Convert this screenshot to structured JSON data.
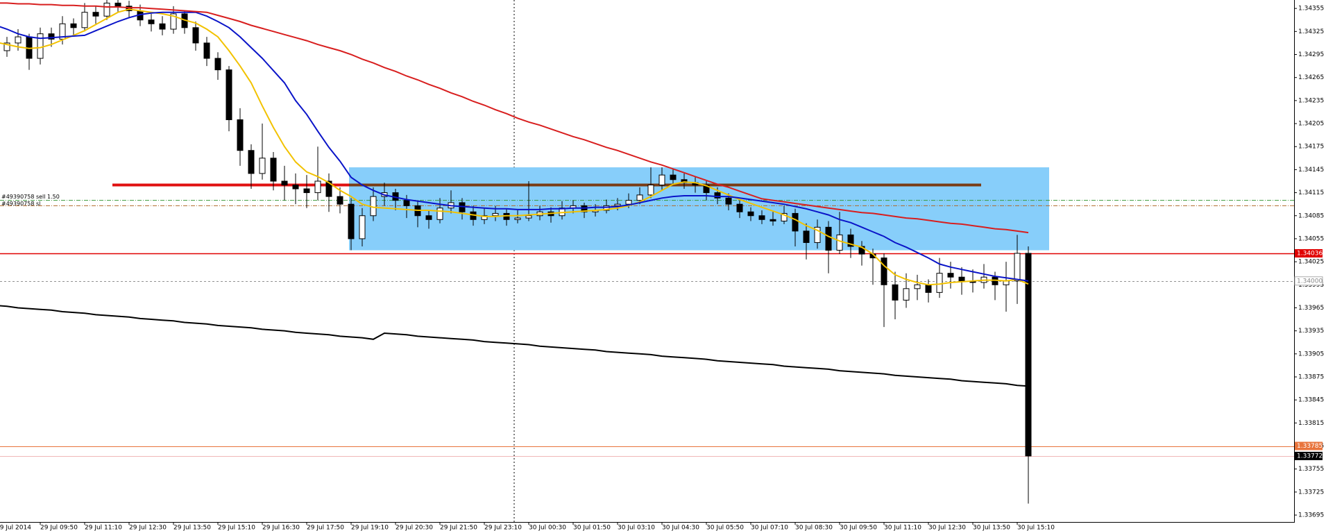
{
  "chart_data": {
    "type": "candlestick",
    "categories": [
      "29 Jul 2014",
      null,
      null,
      null,
      "29 Jul 09:50",
      null,
      null,
      null,
      "29 Jul 11:10",
      null,
      null,
      null,
      "29 Jul 12:30",
      null,
      null,
      null,
      "29 Jul 13:50",
      null,
      null,
      null,
      "29 Jul 15:10",
      null,
      null,
      null,
      "29 Jul 16:30",
      null,
      null,
      null,
      "29 Jul 17:50",
      null,
      null,
      null,
      "29 Jul 19:10",
      null,
      null,
      null,
      "29 Jul 20:30",
      null,
      null,
      null,
      "29 Jul 21:50",
      null,
      null,
      null,
      "29 Jul 23:10",
      null,
      null,
      null,
      "30 Jul 00:30",
      null,
      null,
      null,
      "30 Jul 01:50",
      null,
      null,
      null,
      "30 Jul 03:10",
      null,
      null,
      null,
      "30 Jul 04:30",
      null,
      null,
      null,
      "30 Jul 05:50",
      null,
      null,
      null,
      "30 Jul 07:10",
      null,
      null,
      null,
      "30 Jul 08:30",
      null,
      null,
      null,
      "30 Jul 09:50",
      null,
      null,
      null,
      "30 Jul 11:10",
      null,
      null,
      null,
      "30 Jul 12:30",
      null,
      null,
      null,
      "30 Jul 13:50",
      null,
      null,
      null,
      "30 Jul 15:10",
      null
    ],
    "ohlc": [
      [
        1.34295,
        1.34312,
        1.34285,
        1.343
      ],
      [
        1.343,
        1.34318,
        1.34292,
        1.3431
      ],
      [
        1.3431,
        1.34328,
        1.343,
        1.34318
      ],
      [
        1.34318,
        1.34322,
        1.34275,
        1.3429
      ],
      [
        1.3429,
        1.3433,
        1.34282,
        1.34322
      ],
      [
        1.34322,
        1.3433,
        1.34305,
        1.34315
      ],
      [
        1.34315,
        1.34345,
        1.34308,
        1.34335
      ],
      [
        1.34335,
        1.34342,
        1.3432,
        1.3433
      ],
      [
        1.3433,
        1.34362,
        1.34325,
        1.3435
      ],
      [
        1.3435,
        1.34358,
        1.34335,
        1.34345
      ],
      [
        1.34345,
        1.34372,
        1.3434,
        1.34362
      ],
      [
        1.34362,
        1.3437,
        1.3435,
        1.34358
      ],
      [
        1.34358,
        1.34365,
        1.34342,
        1.34352
      ],
      [
        1.34352,
        1.3436,
        1.34332,
        1.3434
      ],
      [
        1.3434,
        1.34348,
        1.34325,
        1.34335
      ],
      [
        1.34335,
        1.34345,
        1.3432,
        1.34328
      ],
      [
        1.34328,
        1.34358,
        1.34322,
        1.34348
      ],
      [
        1.34348,
        1.34352,
        1.34322,
        1.3433
      ],
      [
        1.3433,
        1.34338,
        1.343,
        1.3431
      ],
      [
        1.3431,
        1.34318,
        1.3428,
        1.3429
      ],
      [
        1.3429,
        1.34298,
        1.34262,
        1.34275
      ],
      [
        1.34275,
        1.3428,
        1.34195,
        1.3421
      ],
      [
        1.3421,
        1.34225,
        1.3415,
        1.3417
      ],
      [
        1.3417,
        1.34178,
        1.3412,
        1.3414
      ],
      [
        1.3414,
        1.34205,
        1.34132,
        1.3416
      ],
      [
        1.3416,
        1.34168,
        1.34118,
        1.3413
      ],
      [
        1.3413,
        1.3415,
        1.34105,
        1.34125
      ],
      [
        1.34125,
        1.3414,
        1.341,
        1.3412
      ],
      [
        1.3412,
        1.34138,
        1.34095,
        1.34115
      ],
      [
        1.34115,
        1.34175,
        1.34105,
        1.3413
      ],
      [
        1.3413,
        1.3414,
        1.3409,
        1.3411
      ],
      [
        1.3411,
        1.34122,
        1.34088,
        1.341
      ],
      [
        1.341,
        1.34108,
        1.3404,
        1.34055
      ],
      [
        1.34055,
        1.34095,
        1.34045,
        1.34085
      ],
      [
        1.34085,
        1.34122,
        1.34078,
        1.3411
      ],
      [
        1.3411,
        1.34128,
        1.34098,
        1.34115
      ],
      [
        1.34115,
        1.3412,
        1.34092,
        1.34105
      ],
      [
        1.34105,
        1.34112,
        1.34082,
        1.34098
      ],
      [
        1.34098,
        1.34105,
        1.3407,
        1.34085
      ],
      [
        1.34085,
        1.34092,
        1.34068,
        1.3408
      ],
      [
        1.3408,
        1.34108,
        1.34075,
        1.34095
      ],
      [
        1.34095,
        1.34118,
        1.34088,
        1.34102
      ],
      [
        1.34102,
        1.34108,
        1.3408,
        1.3409
      ],
      [
        1.3409,
        1.34098,
        1.34072,
        1.3408
      ],
      [
        1.3408,
        1.34095,
        1.34074,
        1.34085
      ],
      [
        1.34085,
        1.34098,
        1.34078,
        1.34088
      ],
      [
        1.34088,
        1.34094,
        1.34072,
        1.3408
      ],
      [
        1.3408,
        1.34092,
        1.34075,
        1.34082
      ],
      [
        1.34082,
        1.3413,
        1.34078,
        1.34085
      ],
      [
        1.34085,
        1.34098,
        1.34079,
        1.3409
      ],
      [
        1.3409,
        1.34096,
        1.34076,
        1.34085
      ],
      [
        1.34085,
        1.34104,
        1.3408,
        1.34095
      ],
      [
        1.34095,
        1.34105,
        1.34088,
        1.34098
      ],
      [
        1.34098,
        1.34102,
        1.34082,
        1.3409
      ],
      [
        1.3409,
        1.341,
        1.34084,
        1.34092
      ],
      [
        1.34092,
        1.34106,
        1.34088,
        1.34098
      ],
      [
        1.34098,
        1.34108,
        1.34092,
        1.341
      ],
      [
        1.341,
        1.34114,
        1.34095,
        1.34105
      ],
      [
        1.34105,
        1.34122,
        1.341,
        1.34112
      ],
      [
        1.34112,
        1.34148,
        1.34108,
        1.34125
      ],
      [
        1.34125,
        1.34148,
        1.34118,
        1.34138
      ],
      [
        1.34138,
        1.34146,
        1.34125,
        1.34132
      ],
      [
        1.34132,
        1.3414,
        1.3412,
        1.34128
      ],
      [
        1.34128,
        1.34135,
        1.34115,
        1.34125
      ],
      [
        1.34125,
        1.3413,
        1.34105,
        1.34115
      ],
      [
        1.34115,
        1.34122,
        1.341,
        1.34108
      ],
      [
        1.34108,
        1.34114,
        1.34092,
        1.341
      ],
      [
        1.341,
        1.34106,
        1.34082,
        1.3409
      ],
      [
        1.3409,
        1.34096,
        1.34078,
        1.34085
      ],
      [
        1.34085,
        1.34092,
        1.34074,
        1.3408
      ],
      [
        1.3408,
        1.3409,
        1.34072,
        1.34078
      ],
      [
        1.34078,
        1.34098,
        1.34074,
        1.34088
      ],
      [
        1.34088,
        1.34094,
        1.34045,
        1.34065
      ],
      [
        1.34065,
        1.34075,
        1.34028,
        1.3405
      ],
      [
        1.3405,
        1.3408,
        1.34042,
        1.3407
      ],
      [
        1.3407,
        1.34078,
        1.3401,
        1.3404
      ],
      [
        1.3404,
        1.3409,
        1.34035,
        1.3406
      ],
      [
        1.3406,
        1.34068,
        1.3403,
        1.34045
      ],
      [
        1.34045,
        1.34052,
        1.3402,
        1.34035
      ],
      [
        1.34035,
        1.34042,
        1.33995,
        1.3403
      ],
      [
        1.3403,
        1.34036,
        1.3394,
        1.33995
      ],
      [
        1.33995,
        1.34012,
        1.3395,
        1.33975
      ],
      [
        1.33975,
        1.3401,
        1.33965,
        1.3399
      ],
      [
        1.3399,
        1.34008,
        1.33975,
        1.33995
      ],
      [
        1.33995,
        1.34002,
        1.33972,
        1.33985
      ],
      [
        1.33985,
        1.3403,
        1.33978,
        1.3401
      ],
      [
        1.3401,
        1.34025,
        1.3399,
        1.34005
      ],
      [
        1.34005,
        1.34018,
        1.33982,
        1.34
      ],
      [
        1.34,
        1.34015,
        1.33985,
        1.33998
      ],
      [
        1.33998,
        1.34022,
        1.3399,
        1.34005
      ],
      [
        1.34005,
        1.34012,
        1.33975,
        1.33995
      ],
      [
        1.33995,
        1.34025,
        1.3396,
        1.34
      ],
      [
        1.34,
        1.3406,
        1.3397,
        1.34036
      ],
      [
        1.34036,
        1.34045,
        1.3371,
        1.33772
      ]
    ],
    "lines": [
      {
        "color": "#f2c200",
        "values": [
          1.34311,
          1.34308,
          1.34305,
          1.34303,
          1.34304,
          1.34308,
          1.34314,
          1.3432,
          1.34326,
          1.34334,
          1.34342,
          1.3435,
          1.34354,
          1.34352,
          1.3435,
          1.34348,
          1.34345,
          1.3434,
          1.34336,
          1.34328,
          1.34318,
          1.343,
          1.3428,
          1.34258,
          1.34228,
          1.342,
          1.34175,
          1.34155,
          1.34142,
          1.34136,
          1.34128,
          1.34118,
          1.3411,
          1.341,
          1.34096,
          1.34095,
          1.34094,
          1.34093,
          1.34092,
          1.34092,
          1.34091,
          1.3409,
          1.34088,
          1.34086,
          1.34084,
          1.34084,
          1.34085,
          1.34085,
          1.34086,
          1.34087,
          1.34088,
          1.34089,
          1.3409,
          1.34091,
          1.34092,
          1.34093,
          1.34095,
          1.34098,
          1.34103,
          1.3411,
          1.34118,
          1.34126,
          1.34129,
          1.34128,
          1.34124,
          1.34118,
          1.34112,
          1.34106,
          1.34101,
          1.34096,
          1.34091,
          1.34086,
          1.3408,
          1.34072,
          1.34066,
          1.34058,
          1.34052,
          1.34048,
          1.34044,
          1.34035,
          1.3402,
          1.34008,
          1.34002,
          1.33998,
          1.33995,
          1.33996,
          1.33998,
          1.33999,
          1.34,
          1.34001,
          1.34001,
          1.34,
          1.34002,
          1.33996
        ]
      },
      {
        "color": "#0a14c8",
        "values": [
          1.34333,
          1.34328,
          1.34322,
          1.34318,
          1.34316,
          1.34317,
          1.34318,
          1.34319,
          1.3432,
          1.34326,
          1.34332,
          1.34338,
          1.34343,
          1.34347,
          1.34349,
          1.3435,
          1.3435,
          1.3435,
          1.3435,
          1.34345,
          1.34338,
          1.3433,
          1.34318,
          1.34304,
          1.3429,
          1.34274,
          1.34258,
          1.34235,
          1.34217,
          1.34195,
          1.34174,
          1.34156,
          1.34135,
          1.34125,
          1.34118,
          1.34112,
          1.34109,
          1.34106,
          1.34104,
          1.34102,
          1.341,
          1.34098,
          1.34097,
          1.34096,
          1.34095,
          1.34094,
          1.34094,
          1.34093,
          1.34093,
          1.34093,
          1.34094,
          1.34094,
          1.34095,
          1.34095,
          1.34096,
          1.34096,
          1.34097,
          1.34099,
          1.34102,
          1.34105,
          1.34108,
          1.3411,
          1.34111,
          1.34111,
          1.34111,
          1.3411,
          1.3411,
          1.34108,
          1.34106,
          1.34104,
          1.34102,
          1.341,
          1.34097,
          1.34094,
          1.3409,
          1.34086,
          1.3408,
          1.34076,
          1.3407,
          1.34064,
          1.34058,
          1.3405,
          1.34044,
          1.34037,
          1.3403,
          1.34022,
          1.34018,
          1.34015,
          1.34012,
          1.34009,
          1.34006,
          1.34004,
          1.34002,
          1.34
        ]
      },
      {
        "color": "#d81e1e",
        "values": [
          1.34362,
          1.34362,
          1.34361,
          1.34361,
          1.3436,
          1.3436,
          1.34359,
          1.34359,
          1.34358,
          1.34358,
          1.34357,
          1.34357,
          1.34356,
          1.34356,
          1.34355,
          1.34354,
          1.34353,
          1.34352,
          1.34351,
          1.3435,
          1.34346,
          1.34342,
          1.34338,
          1.34333,
          1.34329,
          1.34325,
          1.34321,
          1.34317,
          1.34313,
          1.34308,
          1.34304,
          1.343,
          1.34295,
          1.34289,
          1.34284,
          1.34278,
          1.34273,
          1.34267,
          1.34262,
          1.34256,
          1.34251,
          1.34245,
          1.3424,
          1.34234,
          1.34229,
          1.34223,
          1.34218,
          1.34212,
          1.34207,
          1.34203,
          1.34198,
          1.34193,
          1.34188,
          1.34184,
          1.34179,
          1.34174,
          1.3417,
          1.34165,
          1.3416,
          1.34155,
          1.34151,
          1.34146,
          1.34141,
          1.34136,
          1.34131,
          1.34126,
          1.34122,
          1.34117,
          1.34112,
          1.34107,
          1.34105,
          1.34103,
          1.34101,
          1.34099,
          1.34097,
          1.34095,
          1.34093,
          1.34091,
          1.34089,
          1.34088,
          1.34086,
          1.34084,
          1.34082,
          1.34081,
          1.34079,
          1.34077,
          1.34075,
          1.34074,
          1.34072,
          1.3407,
          1.34068,
          1.34067,
          1.34065,
          1.34063
        ]
      },
      {
        "color": "#000000",
        "values": [
          1.33968,
          1.33967,
          1.33965,
          1.33964,
          1.33963,
          1.33962,
          1.3396,
          1.33959,
          1.33958,
          1.33956,
          1.33955,
          1.33954,
          1.33953,
          1.33951,
          1.3395,
          1.33949,
          1.33948,
          1.33946,
          1.33945,
          1.33944,
          1.33942,
          1.33941,
          1.3394,
          1.33939,
          1.33937,
          1.33936,
          1.33935,
          1.33933,
          1.33932,
          1.33931,
          1.3393,
          1.33928,
          1.33927,
          1.33926,
          1.33924,
          1.33932,
          1.33931,
          1.3393,
          1.33928,
          1.33927,
          1.33926,
          1.33925,
          1.33924,
          1.33923,
          1.33921,
          1.3392,
          1.33919,
          1.33918,
          1.33917,
          1.33915,
          1.33914,
          1.33913,
          1.33912,
          1.33911,
          1.3391,
          1.33908,
          1.33907,
          1.33906,
          1.33905,
          1.33904,
          1.33902,
          1.33901,
          1.339,
          1.33899,
          1.33898,
          1.33896,
          1.33895,
          1.33894,
          1.33893,
          1.33892,
          1.33891,
          1.33889,
          1.33888,
          1.33887,
          1.33886,
          1.33885,
          1.33883,
          1.33882,
          1.33881,
          1.3388,
          1.33879,
          1.33877,
          1.33876,
          1.33875,
          1.33874,
          1.33873,
          1.33872,
          1.3387,
          1.33869,
          1.33868,
          1.33867,
          1.33866,
          1.33864,
          1.33863
        ]
      }
    ],
    "zone": [
      1.3404,
      1.34148
    ],
    "zone_color": "#87cefa",
    "support": [
      {
        "price": 1.34125,
        "color": "#e01010"
      },
      {
        "price": 1.34125,
        "color": "#7a3c14"
      }
    ],
    "levels": [
      {
        "price": 1.34036,
        "color": "#e00000",
        "style": "solid"
      },
      {
        "price": {
          "value": 1.34,
          "label": "1.34000"
        },
        "color": "#909090",
        "style": "dashed"
      },
      {
        "price": 1.33785,
        "color": "#e8743c",
        "style": "solid"
      },
      {
        "price": 1.33772,
        "color": "#f0b8b8",
        "style": "solid"
      }
    ],
    "trades": [
      {
        "price": 1.34105,
        "color": "#3a9a3a",
        "text": "#49390758 sell 1.50"
      },
      {
        "price": 1.34098,
        "color": "#b06a2a",
        "text": "#49390758 sl"
      }
    ],
    "ylim": [
      1.33686,
      1.34366
    ],
    "yticks": [
      1.34355,
      1.34325,
      1.34295,
      1.34265,
      1.34235,
      1.34205,
      1.34175,
      1.34145,
      1.34115,
      1.34085,
      1.34055,
      1.34025,
      1.33995,
      1.33965,
      1.33935,
      1.33905,
      1.33875,
      1.33845,
      1.33815,
      1.33785,
      1.33755,
      1.33725,
      1.33695
    ],
    "grid": false
  }
}
